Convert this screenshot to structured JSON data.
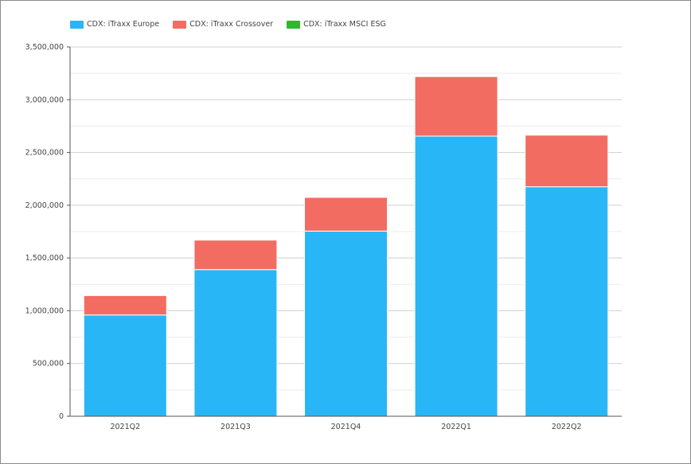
{
  "chart_data": {
    "type": "bar",
    "stacked": true,
    "categories": [
      "2021Q2",
      "2021Q3",
      "2021Q4",
      "2022Q1",
      "2022Q2"
    ],
    "series": [
      {
        "name": "CDX: iTraxx Europe",
        "color": "#29b6f6",
        "values": [
          960000,
          1390000,
          1755000,
          2655000,
          2175000
        ]
      },
      {
        "name": "CDX: iTraxx Crossover",
        "color": "#f26c62",
        "values": [
          185000,
          280000,
          320000,
          565000,
          490000
        ]
      },
      {
        "name": "CDX: iTraxx MSCI ESG",
        "color": "#2eb82e",
        "values": [
          3000,
          5000,
          5000,
          6000,
          5000
        ]
      }
    ],
    "ylim": [
      0,
      3500000
    ],
    "yticks": [
      "0",
      "500,000",
      "1,000,000",
      "1,500,000",
      "2,000,000",
      "2,500,000",
      "3,000,000",
      "3,500,000"
    ],
    "grid": true,
    "legend_position": "top-left"
  }
}
